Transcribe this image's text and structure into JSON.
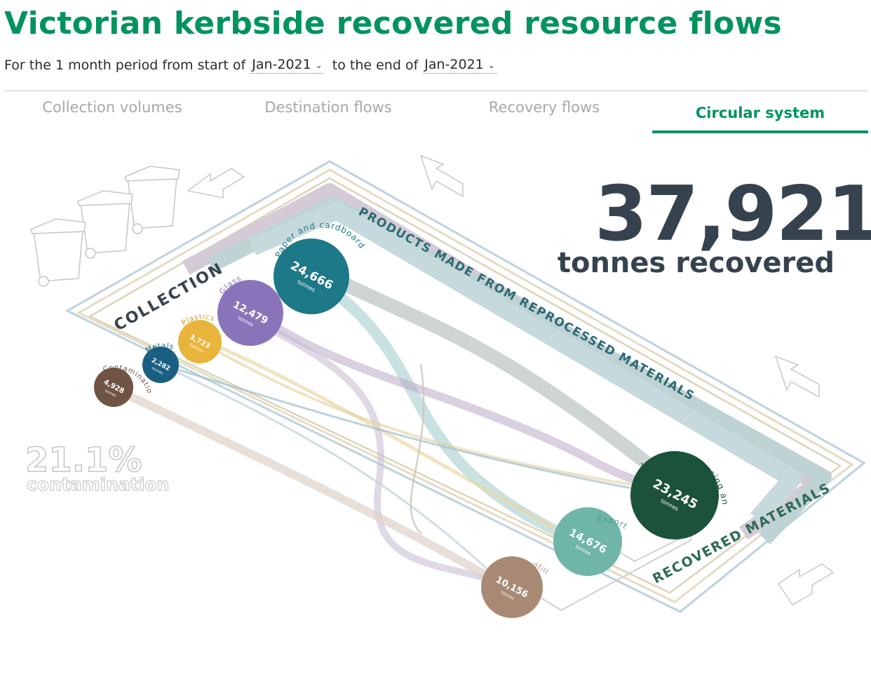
{
  "page": {
    "title": "Victorian kerbside recovered resource flows",
    "period_prefix": "For the 1 month period from start of",
    "period_mid": "to the end of",
    "start_month": "Jan-2021",
    "end_month": "Jan-2021"
  },
  "tabs": [
    {
      "label": "Collection volumes",
      "active": false
    },
    {
      "label": "Destination flows",
      "active": false
    },
    {
      "label": "Recovery flows",
      "active": false
    },
    {
      "label": "Circular system",
      "active": true
    }
  ],
  "summary": {
    "tonnes_recovered": "37,921",
    "tonnes_recovered_label": "tonnes recovered",
    "contamination_pct": "21.1%",
    "contamination_label": "contamination"
  },
  "diagram": {
    "loop_labels": {
      "collection": "COLLECTION",
      "products": "PRODUCTS MADE FROM REPROCESSED MATERIALS",
      "recovered": "RECOVERED MATERIALS"
    },
    "unit": "tonnes",
    "sources": [
      {
        "name": "Paper and cardboard",
        "value": "24,666",
        "color": "#1d7888"
      },
      {
        "name": "Glass",
        "value": "12,479",
        "color": "#8a74b9"
      },
      {
        "name": "Plastics",
        "value": "3,723",
        "color": "#e9b43b"
      },
      {
        "name": "Metals",
        "value": "2,282",
        "color": "#1a5f82"
      },
      {
        "name": "Contamination",
        "value": "4,928",
        "color": "#6f5443"
      }
    ],
    "destinations": [
      {
        "name": "Local reprocessing and storage",
        "value": "23,245",
        "color": "#1b5239"
      },
      {
        "name": "Export",
        "value": "14,676",
        "color": "#6fb5a8"
      },
      {
        "name": "Landfill",
        "value": "10,156",
        "color": "#a88a74"
      }
    ],
    "icons": [
      "wheelie-bin-icon",
      "arrow-icon"
    ]
  }
}
